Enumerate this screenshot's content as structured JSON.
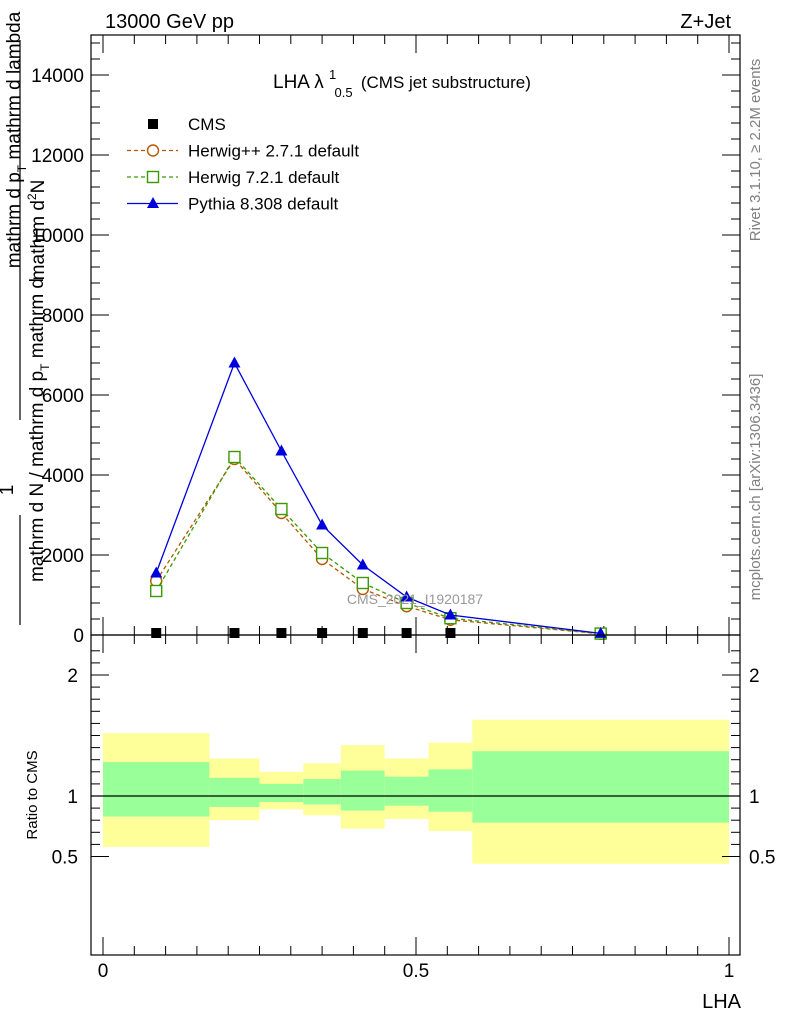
{
  "header": {
    "left": "13000 GeV pp",
    "right": "Z+Jet"
  },
  "side_labels": {
    "rivet": "Rivet 3.1.10, ≥ 2.2M events",
    "mcplots": "mcplots.cern.ch [arXiv:1306.3436]"
  },
  "watermark": "CMS_2021_I1920187",
  "plot_title": {
    "main": "LHA λ",
    "sup": "1",
    "sub": "0.5",
    "note": "(CMS jet substructure)"
  },
  "ylabel_main": {
    "one": "1",
    "part1": "mathrm d N / mathrm d p",
    "sub1": "T",
    "part2": " mathrm d",
    "top_a": "mathrm d",
    "top_sup": "2",
    "top_b": "N",
    "bottom_a": "mathrm d p",
    "bottom_sub": "T",
    "bottom_b": " mathrm d lambda"
  },
  "ylabel_ratio": "Ratio to CMS",
  "xlabel": "LHA",
  "legend": [
    {
      "label": "CMS",
      "marker": "square-filled",
      "color": "#000000"
    },
    {
      "label": "Herwig++ 2.7.1 default",
      "marker": "circle-open",
      "color": "#b35900"
    },
    {
      "label": "Herwig 7.2.1 default",
      "marker": "square-open",
      "color": "#3a9a00"
    },
    {
      "label": "Pythia 8.308 default",
      "marker": "triangle-filled",
      "color": "#0000dd"
    }
  ],
  "chart_data": [
    {
      "type": "line",
      "panel": "main",
      "xlim": [
        0,
        1
      ],
      "ylim": [
        0,
        15000
      ],
      "y_ticks": [
        0,
        2000,
        4000,
        6000,
        8000,
        10000,
        12000,
        14000
      ],
      "y_tick_labels": [
        "0",
        "2000",
        "4000",
        "6000",
        "8000",
        "10000",
        "12000",
        "14000"
      ],
      "series": [
        {
          "name": "CMS",
          "color": "#000000",
          "marker": "square-filled",
          "line": "none",
          "x": [
            0.085,
            0.21,
            0.285,
            0.35,
            0.415,
            0.485,
            0.555
          ],
          "y": [
            0,
            0,
            0,
            0,
            0,
            0,
            0
          ]
        },
        {
          "name": "Herwig++ 2.7.1 default",
          "color": "#b35900",
          "marker": "circle-open",
          "line": "dashed",
          "x": [
            0.085,
            0.21,
            0.285,
            0.35,
            0.415,
            0.485,
            0.555,
            0.795
          ],
          "y": [
            1350,
            4400,
            3050,
            1900,
            1150,
            720,
            380,
            30
          ]
        },
        {
          "name": "Herwig 7.2.1 default",
          "color": "#3a9a00",
          "marker": "square-open",
          "line": "dashed",
          "x": [
            0.085,
            0.21,
            0.285,
            0.35,
            0.415,
            0.485,
            0.555,
            0.795
          ],
          "y": [
            1100,
            4450,
            3150,
            2050,
            1300,
            800,
            420,
            35
          ]
        },
        {
          "name": "Pythia 8.308 default",
          "color": "#0000dd",
          "marker": "triangle-filled",
          "line": "solid",
          "x": [
            0.085,
            0.21,
            0.285,
            0.35,
            0.415,
            0.485,
            0.555,
            0.795
          ],
          "y": [
            1550,
            6800,
            4600,
            2750,
            1750,
            950,
            500,
            40
          ]
        }
      ]
    },
    {
      "type": "area",
      "panel": "ratio",
      "xlim": [
        0,
        1
      ],
      "ylim": [
        0.4,
        2.3
      ],
      "y_ticks": [
        0.5,
        1,
        2
      ],
      "y_tick_labels": [
        "0.5",
        "1",
        "2"
      ],
      "x_ticks": [
        0,
        0.5,
        1
      ],
      "x_tick_labels": [
        "0",
        "0.5",
        "1"
      ],
      "reference": 1,
      "bins": [
        {
          "x0": 0.0,
          "x1": 0.17,
          "outer": [
            0.58,
            1.52
          ],
          "inner": [
            0.83,
            1.28
          ]
        },
        {
          "x0": 0.17,
          "x1": 0.25,
          "outer": [
            0.8,
            1.31
          ],
          "inner": [
            0.91,
            1.15
          ]
        },
        {
          "x0": 0.25,
          "x1": 0.32,
          "outer": [
            0.89,
            1.2
          ],
          "inner": [
            0.95,
            1.1
          ]
        },
        {
          "x0": 0.32,
          "x1": 0.38,
          "outer": [
            0.84,
            1.27
          ],
          "inner": [
            0.93,
            1.14
          ]
        },
        {
          "x0": 0.38,
          "x1": 0.45,
          "outer": [
            0.73,
            1.42
          ],
          "inner": [
            0.88,
            1.21
          ]
        },
        {
          "x0": 0.45,
          "x1": 0.52,
          "outer": [
            0.81,
            1.31
          ],
          "inner": [
            0.92,
            1.16
          ]
        },
        {
          "x0": 0.52,
          "x1": 0.59,
          "outer": [
            0.71,
            1.44
          ],
          "inner": [
            0.87,
            1.22
          ]
        },
        {
          "x0": 0.59,
          "x1": 1.0,
          "outer": [
            0.44,
            1.63
          ],
          "inner": [
            0.78,
            1.37
          ]
        }
      ]
    }
  ],
  "colors": {
    "band_outer": "#ffff99",
    "band_inner": "#99ff99",
    "axis": "#000000"
  }
}
